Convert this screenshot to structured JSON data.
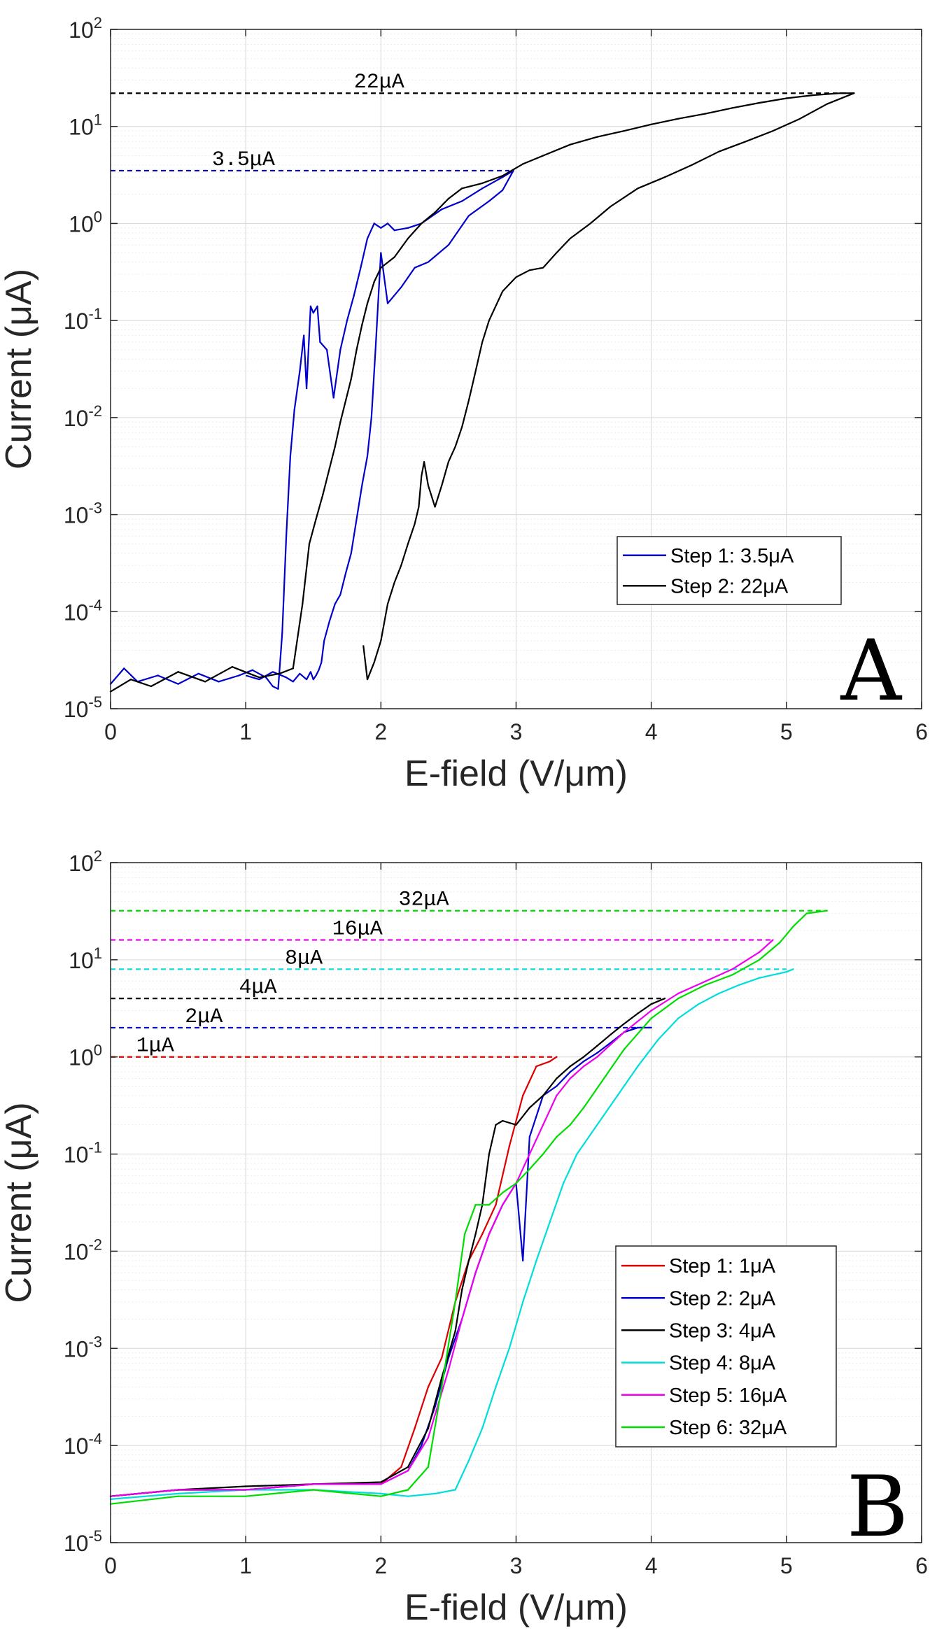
{
  "chart_data": [
    {
      "type": "line",
      "panel_label": "A",
      "xlabel": "E-field (V/μm)",
      "ylabel": "Current (μA)",
      "xlim": [
        0,
        6
      ],
      "ylim": [
        1e-05,
        100
      ],
      "yscale": "log",
      "grid": true,
      "x_ticks": [
        "0",
        "1",
        "2",
        "3",
        "4",
        "5",
        "6"
      ],
      "y_ticks": [
        {
          "base": "10",
          "exp": "2"
        },
        {
          "base": "10",
          "exp": "1"
        },
        {
          "base": "10",
          "exp": "0"
        },
        {
          "base": "10",
          "exp": "-1"
        },
        {
          "base": "10",
          "exp": "-2"
        },
        {
          "base": "10",
          "exp": "-3"
        },
        {
          "base": "10",
          "exp": "-4"
        },
        {
          "base": "10",
          "exp": "-5"
        }
      ],
      "legend_position": "bottom-right",
      "reference_lines": [
        {
          "label": "22μA",
          "y": 22,
          "x_end": 5.5,
          "color": "#000000",
          "label_x": 1.8
        },
        {
          "label": "3.5μA",
          "y": 3.5,
          "x_end": 2.95,
          "color": "#0000cc",
          "label_x": 0.75
        }
      ],
      "series": [
        {
          "name": "Step 1: 3.5μA",
          "color": "#0000cc",
          "x": [
            0.0,
            0.1,
            0.2,
            0.35,
            0.5,
            0.65,
            0.8,
            0.95,
            1.05,
            1.15,
            1.2,
            1.24,
            1.27,
            1.3,
            1.33,
            1.36,
            1.4,
            1.43,
            1.45,
            1.48,
            1.5,
            1.53,
            1.55,
            1.6,
            1.65,
            1.7,
            1.75,
            1.8,
            1.85,
            1.9,
            1.95,
            2.0,
            2.05,
            2.1,
            2.2,
            2.3,
            2.45,
            2.6,
            2.75,
            2.9,
            2.98
          ],
          "y": [
            1.8e-05,
            2.6e-05,
            1.9e-05,
            2.2e-05,
            1.8e-05,
            2.3e-05,
            1.9e-05,
            2.2e-05,
            2.5e-05,
            2.1e-05,
            1.7e-05,
            1.6e-05,
            6e-05,
            0.0006,
            0.004,
            0.012,
            0.03,
            0.07,
            0.02,
            0.14,
            0.12,
            0.14,
            0.06,
            0.05,
            0.016,
            0.05,
            0.1,
            0.18,
            0.35,
            0.7,
            1.0,
            0.9,
            1.0,
            0.85,
            0.9,
            1.0,
            1.4,
            1.7,
            2.3,
            3.0,
            3.5
          ],
          "return_x": [
            2.98,
            2.9,
            2.8,
            2.65,
            2.5,
            2.35,
            2.25,
            2.15,
            2.05,
            2.0,
            1.96,
            1.93,
            1.9,
            1.86,
            1.82,
            1.78,
            1.74,
            1.7,
            1.66,
            1.62,
            1.58,
            1.56,
            1.54,
            1.52,
            1.5,
            1.48,
            1.45,
            1.4,
            1.35,
            1.3,
            1.2,
            1.1,
            1.0
          ],
          "return_y": [
            3.5,
            2.2,
            1.7,
            1.2,
            0.6,
            0.4,
            0.35,
            0.22,
            0.15,
            0.5,
            0.05,
            0.01,
            0.004,
            0.002,
            0.0009,
            0.0004,
            0.00025,
            0.00015,
            0.00012,
            8e-05,
            5e-05,
            3e-05,
            2.5e-05,
            2.2e-05,
            2e-05,
            2.4e-05,
            2e-05,
            2.3e-05,
            1.9e-05,
            2.1e-05,
            2.4e-05,
            2e-05,
            2.2e-05
          ]
        },
        {
          "name": "Step 2: 22μA",
          "color": "#000000",
          "x": [
            0.0,
            0.15,
            0.3,
            0.5,
            0.7,
            0.9,
            1.1,
            1.25,
            1.35,
            1.42,
            1.47,
            1.52,
            1.57,
            1.62,
            1.66,
            1.7,
            1.74,
            1.78,
            1.82,
            1.86,
            1.9,
            1.95,
            2.0,
            2.1,
            2.2,
            2.3,
            2.4,
            2.5,
            2.6,
            2.75,
            2.9,
            3.05,
            3.2,
            3.4,
            3.6,
            3.8,
            4.0,
            4.2,
            4.4,
            4.6,
            4.8,
            5.0,
            5.2,
            5.4,
            5.5
          ],
          "y": [
            1.5e-05,
            2e-05,
            1.7e-05,
            2.4e-05,
            1.9e-05,
            2.7e-05,
            2.1e-05,
            2.3e-05,
            2.6e-05,
            0.00012,
            0.0005,
            0.0009,
            0.0016,
            0.003,
            0.005,
            0.009,
            0.015,
            0.025,
            0.05,
            0.09,
            0.15,
            0.25,
            0.35,
            0.45,
            0.7,
            1.0,
            1.3,
            1.8,
            2.3,
            2.6,
            3.1,
            4.1,
            5.0,
            6.5,
            7.8,
            9.0,
            10.5,
            12.0,
            13.5,
            15.5,
            17.5,
            19.5,
            21.0,
            22.0,
            22.0
          ],
          "return_x": [
            5.5,
            5.3,
            5.1,
            4.9,
            4.7,
            4.5,
            4.3,
            4.1,
            3.9,
            3.7,
            3.55,
            3.4,
            3.3,
            3.2,
            3.1,
            3.0,
            2.9,
            2.8,
            2.75,
            2.7,
            2.65,
            2.6,
            2.55,
            2.5,
            2.45,
            2.4,
            2.35,
            2.32,
            2.3,
            2.28,
            2.25,
            2.2,
            2.15,
            2.1,
            2.05,
            2.0,
            1.95,
            1.9,
            1.87
          ],
          "return_y": [
            22.0,
            17.0,
            12.0,
            9.0,
            7.0,
            5.5,
            4.0,
            3.0,
            2.3,
            1.5,
            1.0,
            0.7,
            0.5,
            0.35,
            0.33,
            0.28,
            0.2,
            0.1,
            0.06,
            0.03,
            0.015,
            0.008,
            0.005,
            0.0035,
            0.002,
            0.0012,
            0.002,
            0.0035,
            0.0025,
            0.0012,
            0.0008,
            0.0005,
            0.0003,
            0.0002,
            0.00012,
            5e-05,
            3e-05,
            2e-05,
            4.5e-05
          ]
        }
      ]
    },
    {
      "type": "line",
      "panel_label": "B",
      "xlabel": "E-field (V/μm)",
      "ylabel": "Current (μA)",
      "xlim": [
        0,
        6
      ],
      "ylim": [
        1e-05,
        100
      ],
      "yscale": "log",
      "grid": true,
      "x_ticks": [
        "0",
        "1",
        "2",
        "3",
        "4",
        "5",
        "6"
      ],
      "y_ticks": [
        {
          "base": "10",
          "exp": "2"
        },
        {
          "base": "10",
          "exp": "1"
        },
        {
          "base": "10",
          "exp": "0"
        },
        {
          "base": "10",
          "exp": "-1"
        },
        {
          "base": "10",
          "exp": "-2"
        },
        {
          "base": "10",
          "exp": "-3"
        },
        {
          "base": "10",
          "exp": "-4"
        },
        {
          "base": "10",
          "exp": "-5"
        }
      ],
      "legend_position": "bottom-right",
      "reference_lines": [
        {
          "label": "32μA",
          "y": 32,
          "x_end": 5.3,
          "color": "#00dd00",
          "label_x": 2.13
        },
        {
          "label": "16μA",
          "y": 16,
          "x_end": 4.9,
          "color": "#ee00ee",
          "label_x": 1.64
        },
        {
          "label": "8μA",
          "y": 8,
          "x_end": 5.0,
          "color": "#00dddd",
          "label_x": 1.29
        },
        {
          "label": "4μA",
          "y": 4,
          "x_end": 4.1,
          "color": "#000000",
          "label_x": 0.95
        },
        {
          "label": "2μA",
          "y": 2,
          "x_end": 4.0,
          "color": "#0000cc",
          "label_x": 0.55
        },
        {
          "label": "1μA",
          "y": 1,
          "x_end": 3.3,
          "color": "#dd0000",
          "label_x": 0.19
        }
      ],
      "series": [
        {
          "name": "Step 1: 1μA",
          "color": "#dd0000",
          "x": [
            0.0,
            0.5,
            1.0,
            1.5,
            2.0,
            2.15,
            2.25,
            2.35,
            2.45,
            2.55,
            2.65,
            2.75,
            2.85,
            2.95,
            3.05,
            3.15,
            3.25,
            3.3
          ],
          "y": [
            3e-05,
            3.5e-05,
            3.5e-05,
            4e-05,
            4e-05,
            6e-05,
            0.00015,
            0.0004,
            0.0008,
            0.003,
            0.008,
            0.015,
            0.03,
            0.12,
            0.4,
            0.8,
            0.9,
            1.0
          ]
        },
        {
          "name": "Step 2: 2μA",
          "color": "#0000cc",
          "x": [
            0.0,
            0.5,
            1.0,
            1.5,
            2.0,
            2.2,
            2.3,
            2.4,
            2.5,
            2.6,
            2.7,
            2.8,
            2.9,
            3.0,
            3.05,
            3.1,
            3.2,
            3.3,
            3.4,
            3.5,
            3.6,
            3.7,
            3.8,
            3.9,
            4.0
          ],
          "y": [
            3e-05,
            3.5e-05,
            3.5e-05,
            4e-05,
            4e-05,
            5.5e-05,
            0.0001,
            0.00025,
            0.0008,
            0.002,
            0.006,
            0.015,
            0.03,
            0.05,
            0.008,
            0.15,
            0.4,
            0.5,
            0.7,
            0.9,
            1.1,
            1.4,
            1.8,
            2.0,
            2.0
          ]
        },
        {
          "name": "Step 3: 4μA",
          "color": "#000000",
          "x": [
            0.0,
            0.5,
            1.0,
            1.5,
            2.0,
            2.2,
            2.35,
            2.45,
            2.55,
            2.6,
            2.65,
            2.7,
            2.75,
            2.8,
            2.85,
            2.9,
            3.0,
            3.1,
            3.2,
            3.3,
            3.4,
            3.5,
            3.6,
            3.7,
            3.8,
            3.9,
            4.0,
            4.1
          ],
          "y": [
            3e-05,
            3.5e-05,
            3.8e-05,
            4e-05,
            4.2e-05,
            6e-05,
            0.00015,
            0.0005,
            0.0015,
            0.004,
            0.008,
            0.015,
            0.03,
            0.1,
            0.2,
            0.22,
            0.2,
            0.3,
            0.4,
            0.6,
            0.8,
            1.0,
            1.3,
            1.7,
            2.2,
            2.8,
            3.5,
            4.0
          ]
        },
        {
          "name": "Step 4: 8μA",
          "color": "#00dddd",
          "x": [
            0.0,
            0.5,
            1.0,
            1.5,
            2.0,
            2.2,
            2.4,
            2.55,
            2.65,
            2.75,
            2.85,
            2.95,
            3.05,
            3.15,
            3.25,
            3.35,
            3.45,
            3.6,
            3.75,
            3.9,
            4.05,
            4.2,
            4.35,
            4.5,
            4.65,
            4.8,
            5.0,
            5.05
          ],
          "y": [
            2.8e-05,
            3.2e-05,
            3.5e-05,
            3.5e-05,
            3.2e-05,
            3e-05,
            3.2e-05,
            3.5e-05,
            7e-05,
            0.00015,
            0.0004,
            0.001,
            0.003,
            0.008,
            0.02,
            0.05,
            0.1,
            0.2,
            0.4,
            0.8,
            1.5,
            2.5,
            3.5,
            4.5,
            5.5,
            6.5,
            7.5,
            8.0
          ]
        },
        {
          "name": "Step 5: 16μA",
          "color": "#ee00ee",
          "x": [
            0.0,
            0.5,
            1.0,
            1.5,
            2.0,
            2.2,
            2.35,
            2.5,
            2.6,
            2.7,
            2.8,
            2.9,
            3.0,
            3.1,
            3.2,
            3.3,
            3.4,
            3.5,
            3.6,
            3.8,
            4.0,
            4.2,
            4.4,
            4.6,
            4.8,
            4.9
          ],
          "y": [
            3e-05,
            3.5e-05,
            3.5e-05,
            4e-05,
            4e-05,
            5.5e-05,
            0.00012,
            0.0006,
            0.002,
            0.006,
            0.015,
            0.03,
            0.05,
            0.1,
            0.2,
            0.4,
            0.6,
            0.8,
            1.0,
            1.8,
            3.0,
            4.5,
            6.0,
            8.0,
            12.0,
            16.0
          ]
        },
        {
          "name": "Step 6: 32μA",
          "color": "#00dd00",
          "x": [
            0.0,
            0.5,
            1.0,
            1.5,
            2.0,
            2.2,
            2.35,
            2.45,
            2.55,
            2.62,
            2.7,
            2.8,
            2.9,
            3.0,
            3.1,
            3.2,
            3.3,
            3.4,
            3.5,
            3.65,
            3.8,
            4.0,
            4.2,
            4.4,
            4.6,
            4.8,
            4.95,
            5.05,
            5.15,
            5.3
          ],
          "y": [
            2.5e-05,
            3e-05,
            3e-05,
            3.5e-05,
            3e-05,
            3.5e-05,
            6e-05,
            0.0004,
            0.003,
            0.015,
            0.03,
            0.03,
            0.04,
            0.05,
            0.07,
            0.1,
            0.15,
            0.2,
            0.3,
            0.6,
            1.2,
            2.5,
            4.0,
            5.5,
            7.0,
            10.0,
            15.0,
            22.0,
            30.0,
            32.0
          ]
        }
      ]
    }
  ]
}
